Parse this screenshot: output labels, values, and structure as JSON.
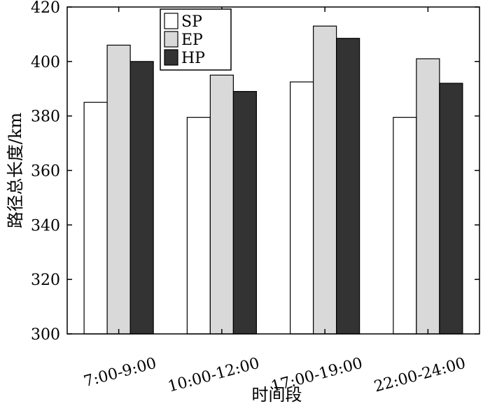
{
  "chart_data": {
    "type": "bar",
    "categories": [
      "7:00-9:00",
      "10:00-12:00",
      "17:00-19:00",
      "22:00-24:00"
    ],
    "series": [
      {
        "name": "SP",
        "values": [
          385,
          379.5,
          392.5,
          379.5
        ],
        "color": "#ffffff"
      },
      {
        "name": "EP",
        "values": [
          406,
          395,
          413,
          401
        ],
        "color": "#d9d9d9"
      },
      {
        "name": "HP",
        "values": [
          400,
          389,
          408.5,
          392
        ],
        "color": "#333333"
      }
    ],
    "xlabel": "时间段",
    "ylabel": "路径总长度/km",
    "ylim": [
      300,
      420
    ],
    "yticks": [
      300,
      320,
      340,
      360,
      380,
      400,
      420
    ],
    "grid": false,
    "legend_position": "top-left"
  }
}
